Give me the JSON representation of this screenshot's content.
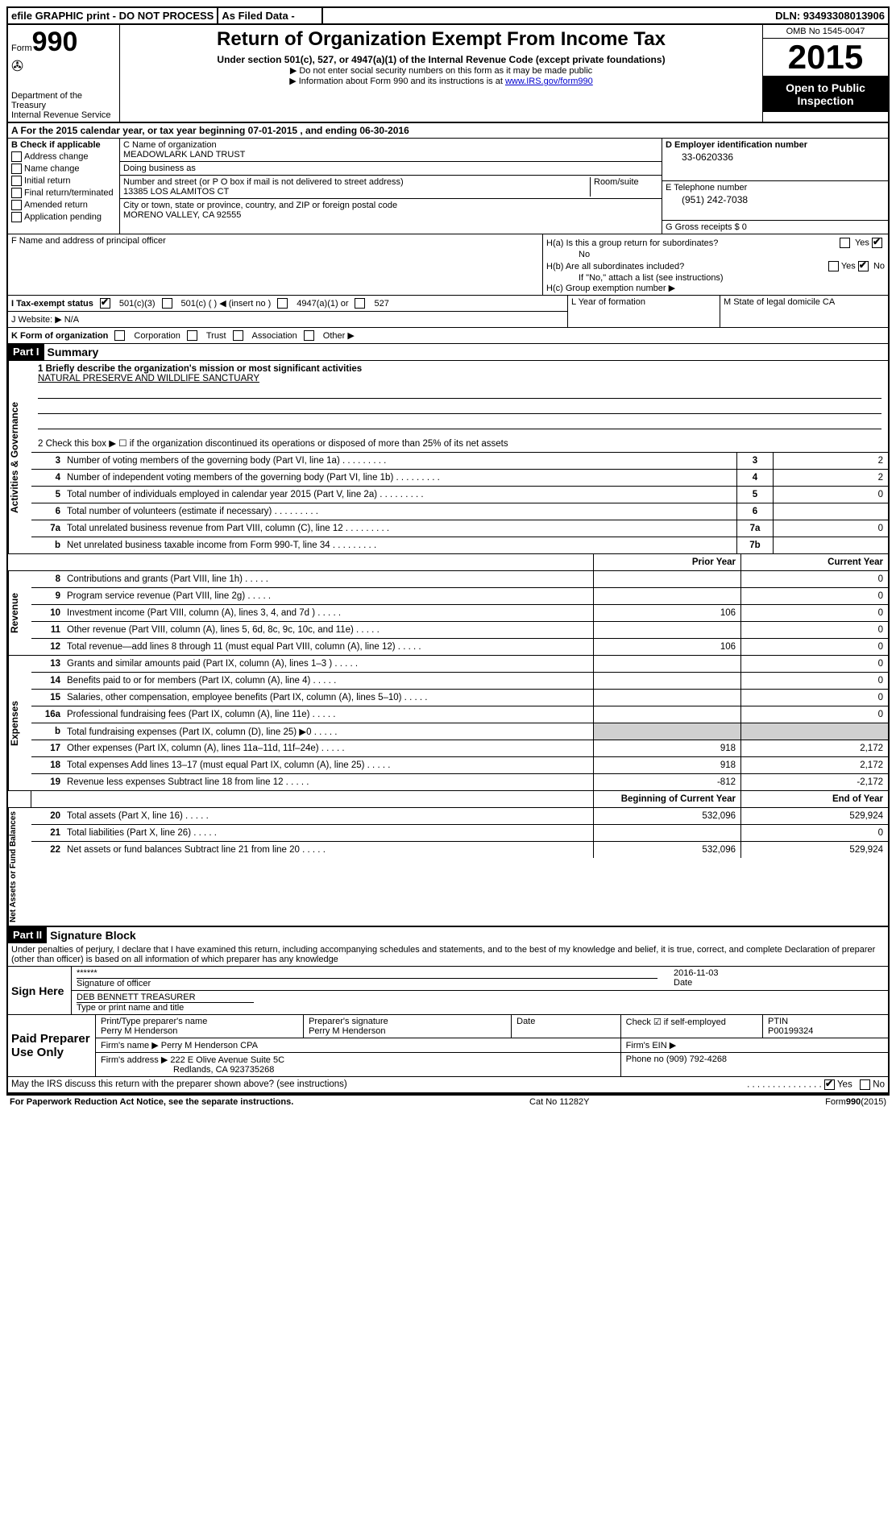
{
  "top": {
    "efile": "efile GRAPHIC print - DO NOT PROCESS",
    "asfiled": "As Filed Data -",
    "dln": "DLN: 93493308013906"
  },
  "header": {
    "form_prefix": "Form",
    "form_number": "990",
    "dept": "Department of the Treasury",
    "irs": "Internal Revenue Service",
    "title": "Return of Organization Exempt From Income Tax",
    "subtitle": "Under section 501(c), 527, or 4947(a)(1) of the Internal Revenue Code (except private foundations)",
    "note1": "▶ Do not enter social security numbers on this form as it may be made public",
    "note2_pre": "▶ Information about Form 990 and its instructions is at ",
    "note2_link": "www.IRS.gov/form990",
    "omb": "OMB No 1545-0047",
    "year": "2015",
    "open1": "Open to Public",
    "open2": "Inspection"
  },
  "row_a": "A  For the 2015 calendar year, or tax year beginning 07-01-2015    , and ending 06-30-2016",
  "col_b": {
    "title": "B Check if applicable",
    "items": [
      "Address change",
      "Name change",
      "Initial return",
      "Final return/terminated",
      "Amended return",
      "Application pending"
    ]
  },
  "col_c": {
    "name_label": "C Name of organization",
    "name": "MEADOWLARK LAND TRUST",
    "dba_label": "Doing business as",
    "street_label": "Number and street (or P O  box if mail is not delivered to street address)",
    "room_label": "Room/suite",
    "street": "13385 LOS ALAMITOS CT",
    "city_label": "City or town, state or province, country, and ZIP or foreign postal code",
    "city": "MORENO VALLEY, CA  92555"
  },
  "col_dg": {
    "d_label": "D Employer identification number",
    "d_val": "33-0620336",
    "e_label": "E Telephone number",
    "e_val": "(951) 242-7038",
    "g_label": "G Gross receipts $ 0"
  },
  "col_f": "F  Name and address of principal officer",
  "col_h": {
    "ha": "H(a)  Is this a group return for subordinates?",
    "ha_no": "No",
    "hb": "H(b)  Are all subordinates included?",
    "hb_note": "If \"No,\" attach a list  (see instructions)",
    "hc": "H(c)   Group exemption number ▶",
    "yes": "Yes",
    "no": "No"
  },
  "row_i": {
    "label": "I  Tax-exempt status",
    "o1": "501(c)(3)",
    "o2": "501(c) (  ) ◀ (insert no )",
    "o3": "4947(a)(1) or",
    "o4": "527"
  },
  "row_j": "J  Website: ▶  N/A",
  "row_k": {
    "label": "K Form of organization",
    "opts": [
      "Corporation",
      "Trust",
      "Association",
      "Other ▶"
    ]
  },
  "row_lm": {
    "l": "L Year of formation",
    "m": "M State of legal domicile  CA"
  },
  "part1": {
    "tag": "Part I",
    "title": "Summary",
    "line1_label": "1 Briefly describe the organization's mission or most significant activities",
    "mission": "NATURAL PRESERVE AND WILDLIFE SANCTUARY",
    "line2": "2  Check this box ▶ ☐ if the organization discontinued its operations or disposed of more than 25% of its net assets",
    "gov_lines": [
      {
        "n": "3",
        "d": "Number of voting members of the governing body (Part VI, line 1a)",
        "b": "3",
        "v": "2"
      },
      {
        "n": "4",
        "d": "Number of independent voting members of the governing body (Part VI, line 1b)",
        "b": "4",
        "v": "2"
      },
      {
        "n": "5",
        "d": "Total number of individuals employed in calendar year 2015 (Part V, line 2a)",
        "b": "5",
        "v": "0"
      },
      {
        "n": "6",
        "d": "Total number of volunteers (estimate if necessary)",
        "b": "6",
        "v": ""
      },
      {
        "n": "7a",
        "d": "Total unrelated business revenue from Part VIII, column (C), line 12",
        "b": "7a",
        "v": "0"
      },
      {
        "n": "b",
        "d": "Net unrelated business taxable income from Form 990-T, line 34",
        "b": "7b",
        "v": ""
      }
    ],
    "prior_hdr": "Prior Year",
    "curr_hdr": "Current Year",
    "rev_lines": [
      {
        "n": "8",
        "d": "Contributions and grants (Part VIII, line 1h)",
        "p": "",
        "c": "0"
      },
      {
        "n": "9",
        "d": "Program service revenue (Part VIII, line 2g)",
        "p": "",
        "c": "0"
      },
      {
        "n": "10",
        "d": "Investment income (Part VIII, column (A), lines 3, 4, and 7d )",
        "p": "106",
        "c": "0"
      },
      {
        "n": "11",
        "d": "Other revenue (Part VIII, column (A), lines 5, 6d, 8c, 9c, 10c, and 11e)",
        "p": "",
        "c": "0"
      },
      {
        "n": "12",
        "d": "Total revenue—add lines 8 through 11 (must equal Part VIII, column (A), line 12)",
        "p": "106",
        "c": "0"
      }
    ],
    "exp_lines": [
      {
        "n": "13",
        "d": "Grants and similar amounts paid (Part IX, column (A), lines 1–3 )",
        "p": "",
        "c": "0"
      },
      {
        "n": "14",
        "d": "Benefits paid to or for members (Part IX, column (A), line 4)",
        "p": "",
        "c": "0"
      },
      {
        "n": "15",
        "d": "Salaries, other compensation, employee benefits (Part IX, column (A), lines 5–10)",
        "p": "",
        "c": "0"
      },
      {
        "n": "16a",
        "d": "Professional fundraising fees (Part IX, column (A), line 11e)",
        "p": "",
        "c": "0"
      },
      {
        "n": "b",
        "d": "Total fundraising expenses (Part IX, column (D), line 25) ▶0",
        "p": "shade",
        "c": "shade"
      },
      {
        "n": "17",
        "d": "Other expenses (Part IX, column (A), lines 11a–11d, 11f–24e)",
        "p": "918",
        "c": "2,172"
      },
      {
        "n": "18",
        "d": "Total expenses  Add lines 13–17 (must equal Part IX, column (A), line 25)",
        "p": "918",
        "c": "2,172"
      },
      {
        "n": "19",
        "d": "Revenue less expenses  Subtract line 18 from line 12",
        "p": "-812",
        "c": "-2,172"
      }
    ],
    "na_hdr1": "Beginning of Current Year",
    "na_hdr2": "End of Year",
    "na_lines": [
      {
        "n": "20",
        "d": "Total assets (Part X, line 16)",
        "p": "532,096",
        "c": "529,924"
      },
      {
        "n": "21",
        "d": "Total liabilities (Part X, line 26)",
        "p": "",
        "c": "0"
      },
      {
        "n": "22",
        "d": "Net assets or fund balances  Subtract line 21 from line 20",
        "p": "532,096",
        "c": "529,924"
      }
    ],
    "side_gov": "Activities & Governance",
    "side_rev": "Revenue",
    "side_exp": "Expenses",
    "side_na": "Net Assets or Fund Balances"
  },
  "part2": {
    "tag": "Part II",
    "title": "Signature Block",
    "declaration": "Under penalties of perjury, I declare that I have examined this return, including accompanying schedules and statements, and to the best of my knowledge and belief, it is true, correct, and complete  Declaration of preparer (other than officer) is based on all information of which preparer has any knowledge",
    "sign_here": "Sign Here",
    "sig_stars": "******",
    "sig_label": "Signature of officer",
    "date_label": "Date",
    "date_val": "2016-11-03",
    "officer": "DEB BENNETT TREASURER",
    "officer_label": "Type or print name and title",
    "paid": "Paid Preparer Use Only",
    "prep_name_label": "Print/Type preparer's name",
    "prep_name": "Perry M Henderson",
    "prep_sig_label": "Preparer's signature",
    "prep_sig": "Perry M Henderson",
    "prep_date_label": "Date",
    "self_emp": "Check ☑ if self-employed",
    "ptin_label": "PTIN",
    "ptin": "P00199324",
    "firm_name_label": "Firm's name      ▶",
    "firm_name": "Perry M Henderson CPA",
    "firm_ein_label": "Firm's EIN ▶",
    "firm_addr_label": "Firm's address ▶",
    "firm_addr1": "222 E Olive Avenue Suite 5C",
    "firm_addr2": "Redlands, CA  923735268",
    "firm_phone_label": "Phone no  (909) 792-4268",
    "may_irs": "May the IRS discuss this return with the preparer shown above? (see instructions)",
    "yes": "Yes",
    "no": "No"
  },
  "footer": {
    "left": "For Paperwork Reduction Act Notice, see the separate instructions.",
    "mid": "Cat No  11282Y",
    "right": "Form 990 (2015)"
  }
}
